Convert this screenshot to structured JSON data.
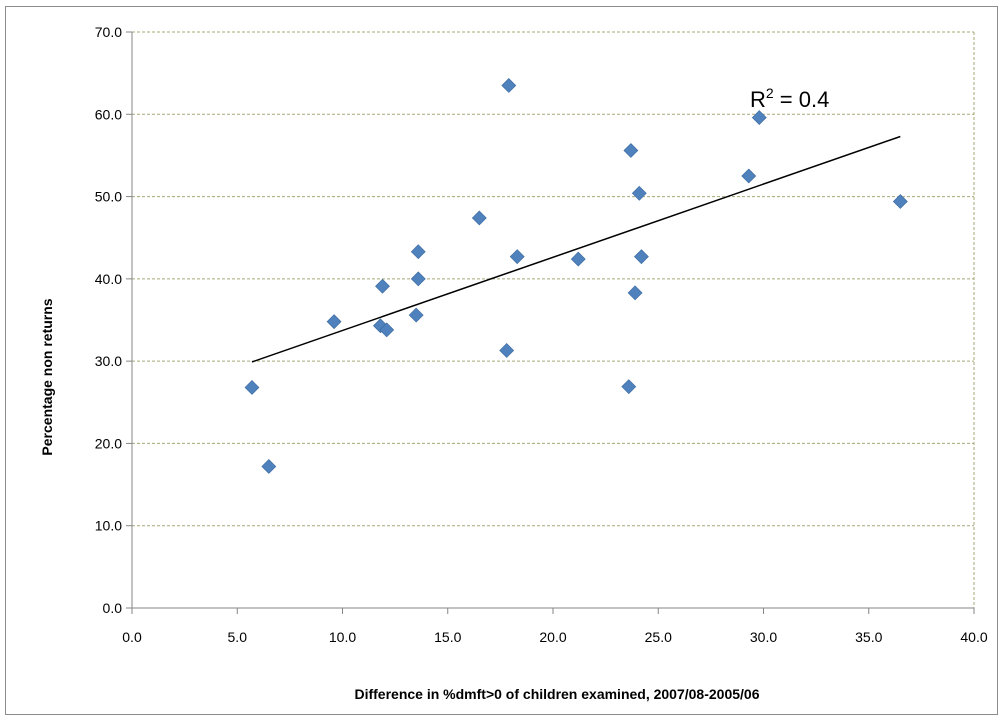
{
  "chart_data": {
    "type": "scatter",
    "title": "",
    "xlabel": "Difference in %dmft>0 of children examined, 2007/08-2005/06",
    "ylabel": "Percentage non returns",
    "xlim": [
      0,
      40
    ],
    "ylim": [
      0,
      70
    ],
    "x_ticks": [
      "0.0",
      "5.0",
      "10.0",
      "15.0",
      "20.0",
      "25.0",
      "30.0",
      "35.0",
      "40.0"
    ],
    "y_ticks": [
      "0.0",
      "10.0",
      "20.0",
      "30.0",
      "40.0",
      "50.0",
      "60.0",
      "70.0"
    ],
    "grid": "horizontal dashed",
    "marker_color": "#4F81BD",
    "gridline_color": "#A8A878",
    "trend_color": "#000000",
    "series": [
      {
        "points": [
          [
            5.7,
            26.8
          ],
          [
            6.5,
            17.2
          ],
          [
            9.6,
            34.8
          ],
          [
            11.8,
            34.3
          ],
          [
            11.9,
            39.1
          ],
          [
            12.1,
            33.8
          ],
          [
            13.5,
            35.6
          ],
          [
            13.6,
            43.3
          ],
          [
            13.6,
            40.0
          ],
          [
            16.5,
            47.4
          ],
          [
            17.8,
            31.3
          ],
          [
            17.9,
            63.5
          ],
          [
            18.3,
            42.7
          ],
          [
            21.2,
            42.4
          ],
          [
            23.6,
            26.9
          ],
          [
            23.7,
            55.6
          ],
          [
            23.9,
            38.3
          ],
          [
            24.1,
            50.4
          ],
          [
            24.2,
            42.7
          ],
          [
            29.3,
            52.5
          ],
          [
            29.8,
            59.6
          ],
          [
            36.5,
            49.4
          ]
        ]
      }
    ],
    "trendline": {
      "type": "linear",
      "x": [
        5.7,
        36.5
      ],
      "y": [
        29.9,
        57.3
      ],
      "label": "R² = 0.4",
      "label_main": "R",
      "label_sup": "2",
      "label_rest": " = 0.4"
    }
  }
}
